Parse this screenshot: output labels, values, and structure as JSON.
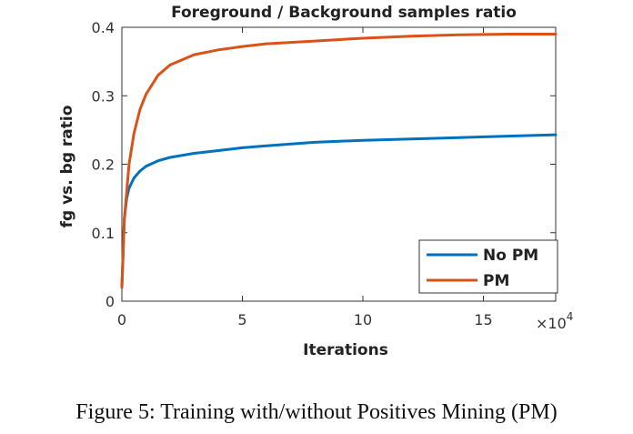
{
  "chart_data": {
    "type": "line",
    "title": "Foreground / Background samples ratio",
    "xlabel": "Iterations",
    "ylabel": "fg vs. bg ratio",
    "x_multiplier_label": "×10",
    "x_multiplier_exp": "4",
    "xlim": [
      0,
      18
    ],
    "ylim": [
      0,
      0.4
    ],
    "xticks": [
      0,
      5,
      10,
      15
    ],
    "yticks": [
      0,
      0.1,
      0.2,
      0.3,
      0.4
    ],
    "grid": false,
    "legend_position": "bottom-right",
    "series": [
      {
        "name": "No PM",
        "color": "#0072BD",
        "x": [
          0,
          0.1,
          0.2,
          0.3,
          0.5,
          0.75,
          1,
          1.5,
          2,
          3,
          4,
          5,
          6,
          8,
          10,
          12,
          14,
          16,
          18
        ],
        "y": [
          0.02,
          0.12,
          0.15,
          0.165,
          0.18,
          0.19,
          0.197,
          0.205,
          0.21,
          0.216,
          0.22,
          0.224,
          0.227,
          0.232,
          0.235,
          0.237,
          0.239,
          0.241,
          0.243
        ]
      },
      {
        "name": "PM",
        "color": "#D95319",
        "x": [
          0,
          0.1,
          0.2,
          0.3,
          0.5,
          0.75,
          1,
          1.5,
          2,
          3,
          4,
          5,
          6,
          8,
          10,
          12,
          14,
          16,
          18
        ],
        "y": [
          0.02,
          0.12,
          0.16,
          0.2,
          0.245,
          0.28,
          0.302,
          0.33,
          0.345,
          0.36,
          0.367,
          0.372,
          0.376,
          0.38,
          0.384,
          0.387,
          0.389,
          0.39,
          0.39
        ]
      }
    ]
  },
  "caption": "Figure 5: Training with/without Positives Mining (PM)"
}
